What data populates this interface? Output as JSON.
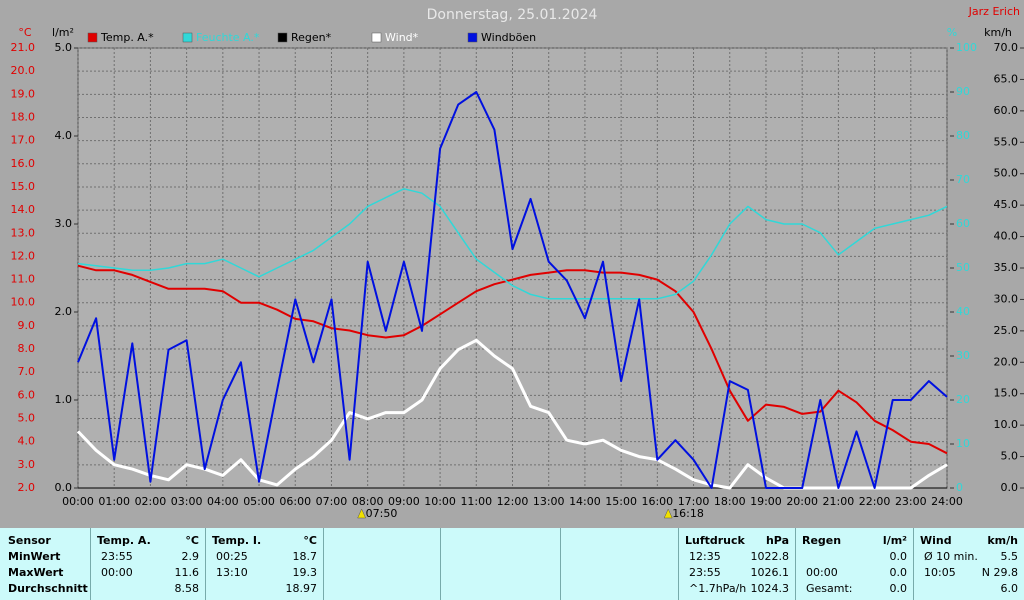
{
  "chart_data": {
    "type": "line",
    "title": "Donnerstag, 25.01.2024",
    "author": "Jarz Erich",
    "ylabel": "°C",
    "y2label": "%",
    "y3label": "l/m²",
    "y4label": "km/h",
    "xlim": [
      0,
      24
    ],
    "xticks": [
      {
        "value": 0,
        "label": "00:00"
      },
      {
        "value": 1,
        "label": "01:00"
      },
      {
        "value": 2,
        "label": "02:00"
      },
      {
        "value": 3,
        "label": "03:00"
      },
      {
        "value": 4,
        "label": "04:00"
      },
      {
        "value": 5,
        "label": "05:00"
      },
      {
        "value": 6,
        "label": "06:00"
      },
      {
        "value": 7,
        "label": "07:00"
      },
      {
        "value": 8,
        "label": "08:00"
      },
      {
        "value": 9,
        "label": "09:00"
      },
      {
        "value": 10,
        "label": "10:00"
      },
      {
        "value": 11,
        "label": "11:00"
      },
      {
        "value": 12,
        "label": "12:00"
      },
      {
        "value": 13,
        "label": "13:00"
      },
      {
        "value": 14,
        "label": "14:00"
      },
      {
        "value": 15,
        "label": "15:00"
      },
      {
        "value": 16,
        "label": "16:00"
      },
      {
        "value": 17,
        "label": "17:00"
      },
      {
        "value": 18,
        "label": "18:00"
      },
      {
        "value": 19,
        "label": "19:00"
      },
      {
        "value": 20,
        "label": "20:00"
      },
      {
        "value": 21,
        "label": "21:00"
      },
      {
        "value": 22,
        "label": "22:00"
      },
      {
        "value": 23,
        "label": "23:00"
      },
      {
        "value": 24,
        "label": "24:00"
      }
    ],
    "ylim": [
      2,
      21
    ],
    "yticks": [
      {
        "value": 2,
        "label": "2.0"
      },
      {
        "value": 3,
        "label": "3.0"
      },
      {
        "value": 4,
        "label": "4.0"
      },
      {
        "value": 5,
        "label": "5.0"
      },
      {
        "value": 6,
        "label": "6.0"
      },
      {
        "value": 7,
        "label": "7.0"
      },
      {
        "value": 8,
        "label": "8.0"
      },
      {
        "value": 9,
        "label": "9.0"
      },
      {
        "value": 10,
        "label": "10.0"
      },
      {
        "value": 11,
        "label": "11.0"
      },
      {
        "value": 12,
        "label": "12.0"
      },
      {
        "value": 13,
        "label": "13.0"
      },
      {
        "value": 14,
        "label": "14.0"
      },
      {
        "value": 15,
        "label": "15.0"
      },
      {
        "value": 16,
        "label": "16.0"
      },
      {
        "value": 17,
        "label": "17.0"
      },
      {
        "value": 18,
        "label": "18.0"
      },
      {
        "value": 19,
        "label": "19.0"
      },
      {
        "value": 20,
        "label": "20.0"
      },
      {
        "value": 21,
        "label": "21.0"
      }
    ],
    "y2lim": [
      0,
      100
    ],
    "y2ticks": [
      0,
      10,
      20,
      30,
      40,
      50,
      60,
      70,
      80,
      90,
      100
    ],
    "y3lim": [
      0,
      5
    ],
    "y3ticks": [
      {
        "value": 0,
        "label": "0.0"
      },
      {
        "value": 1,
        "label": "1.0"
      },
      {
        "value": 2,
        "label": "2.0"
      },
      {
        "value": 3,
        "label": "3.0"
      },
      {
        "value": 4,
        "label": "4.0"
      },
      {
        "value": 5,
        "label": "5.0"
      }
    ],
    "y4lim": [
      0,
      70
    ],
    "y4ticks": [
      {
        "value": 0,
        "label": "0.0"
      },
      {
        "value": 5,
        "label": "5.0"
      },
      {
        "value": 10,
        "label": "10.0"
      },
      {
        "value": 15,
        "label": "15.0"
      },
      {
        "value": 20,
        "label": "20.0"
      },
      {
        "value": 25,
        "label": "25.0"
      },
      {
        "value": 30,
        "label": "30.0"
      },
      {
        "value": 35,
        "label": "35.0"
      },
      {
        "value": 40,
        "label": "40.0"
      },
      {
        "value": 45,
        "label": "45.0"
      },
      {
        "value": 50,
        "label": "50.0"
      },
      {
        "value": 55,
        "label": "55.0"
      },
      {
        "value": 60,
        "label": "60.0"
      },
      {
        "value": 65,
        "label": "65.0"
      },
      {
        "value": 70,
        "label": "70.0"
      }
    ],
    "grid": true,
    "x": [
      0,
      0.5,
      1,
      1.5,
      2,
      2.5,
      3,
      3.5,
      4,
      4.5,
      5,
      5.5,
      6,
      6.5,
      7,
      7.5,
      8,
      8.5,
      9,
      9.5,
      10,
      10.5,
      11,
      11.5,
      12,
      12.5,
      13,
      13.5,
      14,
      14.5,
      15,
      15.5,
      16,
      16.5,
      17,
      17.5,
      18,
      18.5,
      19,
      19.5,
      20,
      20.5,
      21,
      21.5,
      22,
      22.5,
      23,
      23.5,
      24
    ],
    "series": [
      {
        "name": "Temp. A.*",
        "color": "#e00000",
        "axis": "y",
        "values": [
          11.6,
          11.4,
          11.4,
          11.2,
          10.9,
          10.6,
          10.6,
          10.6,
          10.5,
          10.0,
          10.0,
          9.7,
          9.3,
          9.2,
          8.9,
          8.8,
          8.6,
          8.5,
          8.6,
          9.0,
          9.5,
          10.0,
          10.5,
          10.8,
          11.0,
          11.2,
          11.3,
          11.4,
          11.4,
          11.3,
          11.3,
          11.2,
          11.0,
          10.5,
          9.6,
          8.0,
          6.2,
          4.9,
          5.6,
          5.5,
          5.2,
          5.3,
          6.2,
          5.7,
          4.9,
          4.5,
          4.0,
          3.9,
          3.5
        ]
      },
      {
        "name": "Feuchte A.*",
        "color": "#30d8d8",
        "axis": "y2",
        "values": [
          51,
          50.5,
          50,
          49.5,
          49.5,
          50,
          51,
          51,
          52,
          50,
          48,
          50,
          52,
          54,
          57,
          60,
          64,
          66,
          68,
          67,
          64,
          58,
          52,
          49,
          46,
          44,
          43,
          43,
          43,
          43,
          43,
          43,
          43,
          44,
          47,
          53,
          60,
          64,
          61,
          60,
          60,
          58,
          53,
          56,
          59,
          60,
          61,
          62,
          64
        ]
      },
      {
        "name": "Regen*",
        "color": "#000000",
        "axis": "y3",
        "values": [
          0,
          0,
          0,
          0,
          0,
          0,
          0,
          0,
          0,
          0,
          0,
          0,
          0,
          0,
          0,
          0,
          0,
          0,
          0,
          0,
          0,
          0,
          0,
          0,
          0,
          0,
          0,
          0,
          0,
          0,
          0,
          0,
          0,
          0,
          0,
          0,
          0,
          0,
          0,
          0,
          0,
          0,
          0,
          0,
          0,
          0,
          0,
          0,
          0
        ]
      },
      {
        "name": "Wind*",
        "color": "#ffffff",
        "axis": "y4",
        "values": [
          9,
          6,
          3.7,
          3,
          2,
          1.3,
          3.7,
          3,
          2,
          4.5,
          1.3,
          0.5,
          3,
          5,
          7.6,
          12,
          11,
          12,
          12,
          14,
          19,
          22,
          23.5,
          21,
          19,
          13,
          12,
          7.6,
          7,
          7.6,
          6,
          5,
          4.5,
          3,
          1.3,
          0.5,
          0,
          3.7,
          1.6,
          0,
          0,
          0,
          0,
          0,
          0,
          0,
          0,
          2,
          3.7
        ]
      },
      {
        "name": "Windböen",
        "color": "#0010e0",
        "axis": "y4",
        "values": [
          20,
          27,
          4.5,
          23,
          1,
          22,
          23.5,
          3,
          14,
          20,
          1,
          15.6,
          30,
          20,
          30,
          4.5,
          36,
          25,
          36,
          25,
          54,
          61,
          63,
          57,
          38,
          46,
          36,
          33,
          27,
          36,
          17,
          30,
          4.5,
          7.6,
          4.5,
          0,
          17,
          15.6,
          0,
          0,
          0,
          14,
          0,
          9,
          0,
          14,
          14,
          17,
          14.5
        ]
      }
    ],
    "annotations": [
      {
        "x": 7.8333,
        "label": "07:50"
      },
      {
        "x": 16.3,
        "label": "16:18"
      }
    ]
  },
  "table": {
    "first_header": "Sensor",
    "row_labels": [
      "MinWert",
      "MaxWert",
      "Durchschnitt"
    ],
    "columns": [
      {
        "header": "Temp. A.",
        "unit": "°C",
        "rows": [
          [
            "23:55",
            "2.9"
          ],
          [
            "00:00",
            "11.6"
          ],
          [
            null,
            "8.58"
          ]
        ]
      },
      {
        "header": "Temp. I.",
        "unit": "°C",
        "rows": [
          [
            "00:25",
            "18.7"
          ],
          [
            "13:10",
            "19.3"
          ],
          [
            null,
            "18.97"
          ]
        ]
      },
      {
        "header": "Luftdruck",
        "unit": "hPa",
        "rows": [
          [
            "12:35",
            "1022.8"
          ],
          [
            "23:55",
            "1026.1"
          ],
          [
            "^1.7hPa/h",
            "1024.3"
          ]
        ]
      },
      {
        "header": "Regen",
        "unit": "l/m²",
        "rows": [
          [
            null,
            "0.0"
          ],
          [
            "00:00",
            "0.0"
          ],
          [
            "Gesamt:",
            "0.0"
          ]
        ]
      },
      {
        "header": "Wind",
        "unit": "km/h",
        "rows": [
          [
            "Ø 10 min.",
            "5.5"
          ],
          [
            "10:05",
            "N 29.8"
          ],
          [
            null,
            "6.0"
          ]
        ]
      }
    ]
  }
}
